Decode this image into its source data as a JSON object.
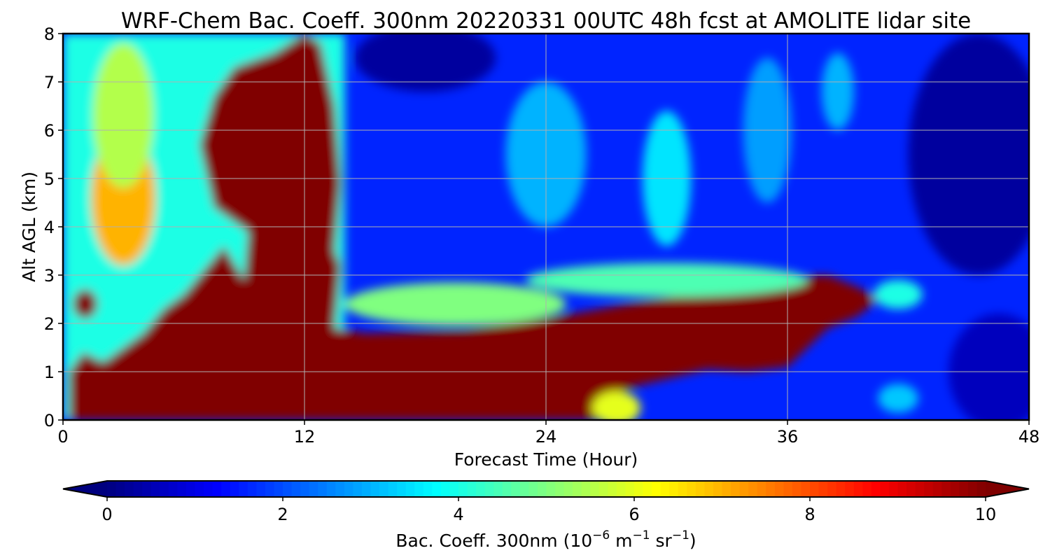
{
  "chart_data": {
    "type": "heatmap",
    "title": "WRF-Chem Bac. Coeff. 300nm  20220331 00UTC 48h fcst at AMOLITE lidar site",
    "xlabel": "Forecast Time (Hour)",
    "ylabel": "Alt AGL (km)",
    "xlim": [
      0,
      48
    ],
    "ylim": [
      0,
      8
    ],
    "x_ticks": [
      "0",
      "12",
      "24",
      "36",
      "48"
    ],
    "y_ticks": [
      "0",
      "1",
      "2",
      "3",
      "4",
      "5",
      "6",
      "7",
      "8"
    ],
    "grid": true,
    "colormap": "jet",
    "colorbar": {
      "label_main": "Bac. Coeff. 300nm  (10",
      "label_exp1": "−6",
      "label_mid": " m",
      "label_exp2": "−1",
      "label_end": " sr",
      "label_exp3": "−1",
      "label_close": ")",
      "range": [
        0,
        10
      ],
      "ticks": [
        "0",
        "2",
        "4",
        "6",
        "8",
        "10"
      ],
      "extend": "both",
      "under_color": "#00007f",
      "over_color": "#7f0000"
    },
    "colors": {
      "high": "#800000",
      "background": "#ffffff"
    },
    "features": [
      {
        "shape": "box",
        "t0": 0,
        "t1": 14,
        "z0": 0,
        "z1": 8,
        "value": 4
      },
      {
        "shape": "ellipse",
        "t": 3,
        "z": 4.6,
        "rt": 1.6,
        "rz": 1.4,
        "value": 7
      },
      {
        "shape": "ellipse",
        "t": 3,
        "z": 6.3,
        "rt": 1.5,
        "rz": 1.5,
        "value": 5.5
      },
      {
        "shape": "polygon",
        "value": 10,
        "pts": [
          [
            0.3,
            0
          ],
          [
            0.3,
            1
          ],
          [
            1,
            1.4
          ],
          [
            2,
            1.2
          ],
          [
            4,
            1.8
          ],
          [
            5,
            2.3
          ],
          [
            6,
            2.6
          ],
          [
            7,
            3.1
          ],
          [
            8,
            3.6
          ],
          [
            9,
            2.9
          ],
          [
            9.2,
            3.9
          ],
          [
            7.5,
            4.4
          ],
          [
            6.8,
            5.7
          ],
          [
            7.5,
            6.7
          ],
          [
            8.5,
            7.3
          ],
          [
            10.5,
            7.6
          ],
          [
            12,
            8
          ],
          [
            12.8,
            7.8
          ],
          [
            13.5,
            6.5
          ],
          [
            13.8,
            4.9
          ],
          [
            13.5,
            3.5
          ],
          [
            13.8,
            3.2
          ],
          [
            13.5,
            1.9
          ],
          [
            15,
            1.8
          ],
          [
            20,
            1.85
          ],
          [
            24,
            2.1
          ],
          [
            28,
            2.4
          ],
          [
            32,
            2.65
          ],
          [
            36,
            2.95
          ],
          [
            38,
            3
          ],
          [
            39.5,
            2.75
          ],
          [
            40.5,
            2.5
          ],
          [
            39.5,
            2.15
          ],
          [
            38,
            1.9
          ],
          [
            36,
            1.1
          ],
          [
            34,
            1.0
          ],
          [
            32,
            1.05
          ],
          [
            30,
            0.85
          ],
          [
            28,
            0.65
          ],
          [
            27,
            0.35
          ],
          [
            26.5,
            0
          ]
        ]
      },
      {
        "shape": "ellipse",
        "t": 1.1,
        "z": 2.4,
        "rt": 0.6,
        "rz": 0.3,
        "value": 10
      },
      {
        "shape": "ellipse",
        "t": 19.5,
        "z": 2.4,
        "rt": 5.5,
        "rz": 0.45,
        "value": 5
      },
      {
        "shape": "ellipse",
        "t": 30,
        "z": 2.9,
        "rt": 7,
        "rz": 0.35,
        "value": 4.5
      },
      {
        "shape": "ellipse",
        "t": 27.5,
        "z": 0.25,
        "rt": 1.2,
        "rz": 0.35,
        "value": 6
      },
      {
        "shape": "ellipse",
        "t": 41.5,
        "z": 2.6,
        "rt": 1.2,
        "rz": 0.3,
        "value": 4
      },
      {
        "shape": "ellipse",
        "t": 30,
        "z": 5.0,
        "rt": 1.2,
        "rz": 1.4,
        "value": 3.5
      },
      {
        "shape": "ellipse",
        "t": 24,
        "z": 5.5,
        "rt": 2,
        "rz": 1.5,
        "value": 3.0
      },
      {
        "shape": "ellipse",
        "t": 35,
        "z": 6.0,
        "rt": 1.2,
        "rz": 1.5,
        "value": 2.8
      },
      {
        "shape": "ellipse",
        "t": 38.5,
        "z": 6.8,
        "rt": 0.8,
        "rz": 0.8,
        "value": 3.0
      },
      {
        "shape": "ellipse",
        "t": 41.5,
        "z": 0.45,
        "rt": 1,
        "rz": 0.3,
        "value": 3.2
      },
      {
        "shape": "ellipse",
        "t": 45.5,
        "z": 5.5,
        "rt": 3.5,
        "rz": 2.5,
        "value": 0.3
      },
      {
        "shape": "ellipse",
        "t": 18,
        "z": 7.5,
        "rt": 3.5,
        "rz": 0.7,
        "value": 0.3
      },
      {
        "shape": "ellipse",
        "t": 46.5,
        "z": 1.0,
        "rt": 2.5,
        "rz": 1.2,
        "value": 0.6
      }
    ],
    "background_value": 1.6
  }
}
